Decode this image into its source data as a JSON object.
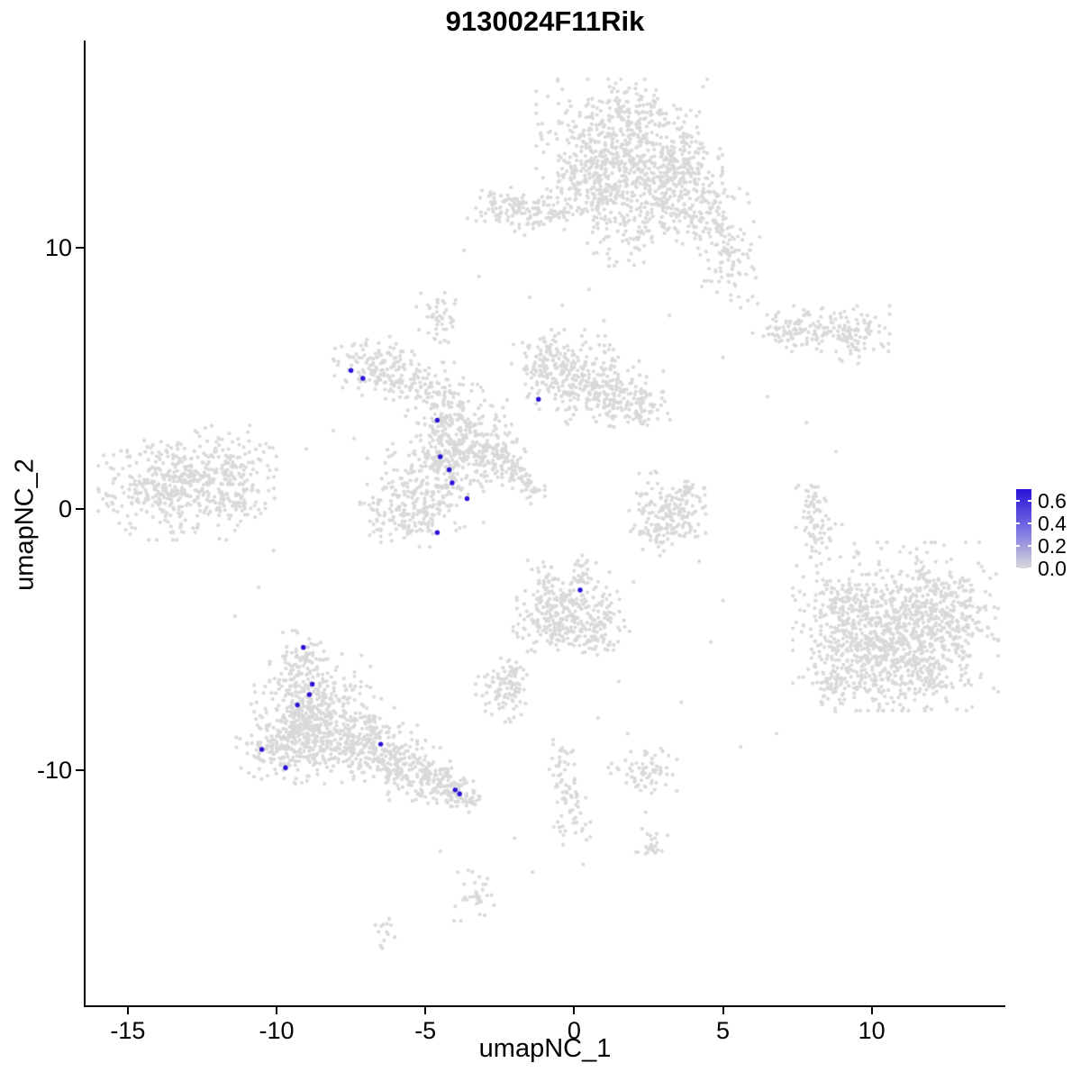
{
  "chart_data": {
    "type": "scatter",
    "title": "9130024F11Rik",
    "xlabel": "umapNC_1",
    "ylabel": "umapNC_2",
    "xlim": [
      -16.42,
      14.46
    ],
    "ylim": [
      -19.03,
      17.93
    ],
    "x_ticks": [
      -15,
      -10,
      -5,
      0,
      5,
      10
    ],
    "y_ticks": [
      -10,
      0,
      10
    ],
    "grid": false,
    "point_color_low": "#D9D9D9",
    "point_color_high": "#2812D6",
    "clusters": [
      [
        1.6,
        13.8,
        1.25,
        1.15,
        480
      ],
      [
        0.7,
        12.4,
        0.8,
        0.7,
        160
      ],
      [
        2.8,
        12.2,
        0.95,
        0.8,
        200
      ],
      [
        4.3,
        11.4,
        0.8,
        0.65,
        140
      ],
      [
        5.2,
        9.7,
        0.45,
        0.8,
        80
      ],
      [
        -1.4,
        11.4,
        0.95,
        0.4,
        120
      ],
      [
        -2.5,
        11.7,
        0.4,
        0.3,
        35
      ],
      [
        1.6,
        10.5,
        0.5,
        0.55,
        55
      ],
      [
        2.1,
        15.3,
        0.5,
        0.35,
        40
      ],
      [
        3.6,
        13.4,
        0.6,
        0.6,
        90
      ],
      [
        -13.0,
        1.0,
        1.3,
        0.95,
        340
      ],
      [
        -14.1,
        0.6,
        0.7,
        0.65,
        110
      ],
      [
        -11.7,
        1.7,
        0.7,
        0.55,
        90
      ],
      [
        -11.3,
        0.3,
        0.45,
        0.4,
        45
      ],
      [
        -4.6,
        7.25,
        0.32,
        0.45,
        45
      ],
      [
        -6.6,
        5.5,
        0.65,
        0.5,
        120
      ],
      [
        -5.5,
        4.7,
        0.5,
        0.4,
        55
      ],
      [
        -4.4,
        4.0,
        0.55,
        0.7,
        110
      ],
      [
        -3.6,
        2.8,
        0.75,
        0.75,
        180
      ],
      [
        -2.9,
        2.0,
        0.55,
        0.55,
        90
      ],
      [
        -5.0,
        0.9,
        0.85,
        0.75,
        200
      ],
      [
        -5.7,
        -0.3,
        0.65,
        0.5,
        110
      ],
      [
        -4.3,
        1.9,
        0.5,
        0.5,
        70
      ],
      [
        -2.4,
        2.0,
        0.22,
        0.22,
        22
      ],
      [
        -2.0,
        1.5,
        0.22,
        0.22,
        22
      ],
      [
        -1.7,
        1.05,
        0.22,
        0.22,
        20
      ],
      [
        -1.4,
        0.6,
        0.18,
        0.18,
        16
      ],
      [
        -0.9,
        5.6,
        0.55,
        0.55,
        90
      ],
      [
        0.3,
        4.9,
        0.85,
        0.75,
        230
      ],
      [
        1.5,
        4.4,
        0.65,
        0.55,
        110
      ],
      [
        2.3,
        3.9,
        0.4,
        0.4,
        40
      ],
      [
        8.3,
        6.9,
        1.0,
        0.38,
        120
      ],
      [
        9.3,
        6.5,
        0.55,
        0.45,
        60
      ],
      [
        7.3,
        6.7,
        0.4,
        0.3,
        30
      ],
      [
        8.1,
        0.1,
        0.28,
        0.5,
        40
      ],
      [
        8.2,
        -0.9,
        0.25,
        0.45,
        32
      ],
      [
        3.0,
        0.3,
        0.5,
        0.5,
        75
      ],
      [
        3.5,
        -0.4,
        0.4,
        0.5,
        65
      ],
      [
        2.7,
        -0.9,
        0.35,
        0.4,
        45
      ],
      [
        3.9,
        0.6,
        0.3,
        0.3,
        28
      ],
      [
        10.8,
        -4.5,
        1.5,
        1.4,
        650
      ],
      [
        12.2,
        -4.2,
        0.85,
        0.95,
        230
      ],
      [
        9.6,
        -5.5,
        0.85,
        0.85,
        190
      ],
      [
        9.0,
        -3.6,
        0.55,
        0.55,
        80
      ],
      [
        11.5,
        -6.4,
        0.75,
        0.55,
        110
      ],
      [
        8.7,
        -6.8,
        0.4,
        0.5,
        45
      ],
      [
        -0.2,
        -3.9,
        0.75,
        0.65,
        190
      ],
      [
        0.6,
        -4.6,
        0.55,
        0.5,
        85
      ],
      [
        -0.9,
        -4.5,
        0.5,
        0.45,
        65
      ],
      [
        -1.0,
        -2.7,
        0.28,
        0.45,
        35
      ],
      [
        0.3,
        -2.5,
        0.25,
        0.4,
        28
      ],
      [
        -2.4,
        -7.0,
        0.42,
        0.5,
        80
      ],
      [
        -2.05,
        -6.2,
        0.28,
        0.28,
        26
      ],
      [
        -8.8,
        -7.5,
        0.85,
        0.85,
        230
      ],
      [
        -9.5,
        -8.8,
        0.75,
        0.75,
        200
      ],
      [
        -8.0,
        -8.5,
        0.85,
        0.75,
        200
      ],
      [
        -7.0,
        -9.2,
        0.75,
        0.55,
        140
      ],
      [
        -6.0,
        -9.8,
        0.65,
        0.45,
        110
      ],
      [
        -5.0,
        -10.3,
        0.55,
        0.38,
        90
      ],
      [
        -4.2,
        -10.7,
        0.45,
        0.32,
        70
      ],
      [
        -9.2,
        -6.3,
        0.45,
        0.55,
        70
      ],
      [
        -9.1,
        -5.4,
        0.3,
        0.38,
        30
      ],
      [
        -10.2,
        -9.3,
        0.5,
        0.5,
        65
      ],
      [
        -3.7,
        -11.1,
        0.3,
        0.22,
        35
      ],
      [
        -0.5,
        -9.7,
        0.22,
        0.38,
        22
      ],
      [
        -0.3,
        -10.8,
        0.25,
        0.45,
        28
      ],
      [
        -0.1,
        -11.9,
        0.28,
        0.45,
        28
      ],
      [
        2.3,
        -10.0,
        0.5,
        0.38,
        65
      ],
      [
        2.5,
        -12.8,
        0.28,
        0.28,
        26
      ],
      [
        -3.3,
        -14.8,
        0.32,
        0.42,
        32
      ],
      [
        -6.3,
        -16.3,
        0.22,
        0.28,
        14
      ]
    ],
    "sparse_points": [
      [
        -3.2,
        8.9
      ],
      [
        -3.7,
        9.9
      ],
      [
        0.5,
        8.4
      ],
      [
        -1.5,
        8.1
      ],
      [
        1.0,
        7.2
      ],
      [
        -0.4,
        7.8
      ],
      [
        3.2,
        7.4
      ],
      [
        4.8,
        8.3
      ],
      [
        5.6,
        7.7
      ],
      [
        5.0,
        5.8
      ],
      [
        6.5,
        4.3
      ],
      [
        7.8,
        3.3
      ],
      [
        8.8,
        2.2
      ],
      [
        -6.2,
        6.6
      ],
      [
        -7.1,
        6.1
      ],
      [
        -8.1,
        3.0
      ],
      [
        -9.0,
        2.3
      ],
      [
        -7.4,
        2.7
      ],
      [
        -10.9,
        3.2
      ],
      [
        -12.4,
        3.1
      ],
      [
        -10.6,
        -3.0
      ],
      [
        -10.1,
        -1.6
      ],
      [
        -11.4,
        -4.1
      ],
      [
        4.2,
        -2.0
      ],
      [
        5.0,
        -3.5
      ],
      [
        4.6,
        -5.1
      ],
      [
        2.0,
        -2.8
      ],
      [
        1.5,
        -6.6
      ],
      [
        3.6,
        -7.4
      ],
      [
        6.8,
        -8.6
      ],
      [
        5.6,
        -9.1
      ],
      [
        8.0,
        -1.6
      ],
      [
        7.7,
        -2.6
      ],
      [
        8.3,
        -2.1
      ],
      [
        0.8,
        -8.0
      ],
      [
        1.8,
        -8.6
      ],
      [
        -2.0,
        -12.6
      ],
      [
        0.3,
        -13.6
      ],
      [
        -1.4,
        -13.9
      ],
      [
        -4.5,
        -13.1
      ],
      [
        2.4,
        -11.6
      ],
      [
        9.0,
        -0.6
      ]
    ],
    "expressing_cells": [
      [
        -7.5,
        5.3
      ],
      [
        -7.1,
        5.0
      ],
      [
        -1.2,
        4.2
      ],
      [
        -4.6,
        3.4
      ],
      [
        -4.5,
        2.0
      ],
      [
        -4.2,
        1.5
      ],
      [
        -4.1,
        1.0
      ],
      [
        -3.6,
        0.4
      ],
      [
        -4.6,
        -0.9
      ],
      [
        0.2,
        -3.1
      ],
      [
        -9.1,
        -5.3
      ],
      [
        -8.8,
        -6.7
      ],
      [
        -8.9,
        -7.1
      ],
      [
        -9.3,
        -7.5
      ],
      [
        -10.5,
        -9.2
      ],
      [
        -9.7,
        -9.9
      ],
      [
        -6.5,
        -9.0
      ],
      [
        -4.0,
        -10.75
      ],
      [
        -3.85,
        -10.9
      ]
    ]
  },
  "legend": {
    "tick_labels": [
      "0.6",
      "0.4",
      "0.2",
      "0.0"
    ],
    "tick_values": [
      0.6,
      0.4,
      0.2,
      0.0
    ],
    "bar_range": [
      0,
      0.7
    ],
    "low_color": "#D9D9D9",
    "mid_color": "#6E66E2",
    "high_color": "#2812D6"
  }
}
